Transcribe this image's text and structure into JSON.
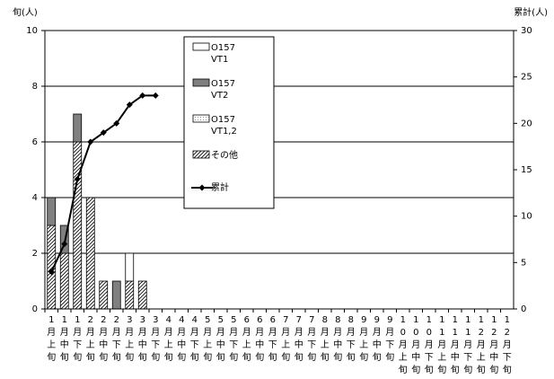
{
  "chart_data": {
    "type": "bar",
    "stacked": true,
    "ylabel": "旬(人)",
    "y2label": "累計(人)",
    "categories": [
      "1月上旬",
      "1月中旬",
      "1月下旬",
      "2月上旬",
      "2月中旬",
      "2月下旬",
      "3月上旬",
      "3月中旬",
      "3月下旬",
      "4月上旬",
      "4月中旬",
      "4月下旬",
      "5月上旬",
      "5月中旬",
      "5月下旬",
      "6月上旬",
      "6月中旬",
      "6月下旬",
      "7月上旬",
      "7月中旬",
      "7月下旬",
      "8月上旬",
      "8月中旬",
      "8月下旬",
      "9月上旬",
      "9月中旬",
      "9月下旬",
      "10月上旬",
      "10月中旬",
      "10月下旬",
      "11月上旬",
      "11月中旬",
      "11月下旬",
      "12月上旬",
      "12月中旬",
      "12月下旬"
    ],
    "ylim": [
      0,
      10
    ],
    "yticks": [
      0,
      2,
      4,
      6,
      8,
      10
    ],
    "y2lim": [
      0,
      30
    ],
    "y2ticks": [
      0,
      5,
      10,
      15,
      20,
      25,
      30
    ],
    "grid": true,
    "legend": "top-center",
    "series": [
      {
        "name": "O157 VT1",
        "color": "#ffffff",
        "pattern": "solid",
        "values": [
          0,
          0,
          0,
          0,
          0,
          0,
          1,
          0,
          0,
          0,
          0,
          0,
          0,
          0,
          0,
          0,
          0,
          0,
          0,
          0,
          0,
          0,
          0,
          0,
          0,
          0,
          0,
          0,
          0,
          0,
          0,
          0,
          0,
          0,
          0,
          0
        ]
      },
      {
        "name": "O157 VT2",
        "color": "#808080",
        "pattern": "solid",
        "values": [
          1,
          1,
          1,
          0,
          0,
          1,
          0,
          0,
          0,
          0,
          0,
          0,
          0,
          0,
          0,
          0,
          0,
          0,
          0,
          0,
          0,
          0,
          0,
          0,
          0,
          0,
          0,
          0,
          0,
          0,
          0,
          0,
          0,
          0,
          0,
          0
        ]
      },
      {
        "name": "O157 VT1,2",
        "color": "#f2f2f2",
        "pattern": "dots",
        "values": [
          0,
          0,
          0,
          0,
          0,
          0,
          0,
          0,
          0,
          0,
          0,
          0,
          0,
          0,
          0,
          0,
          0,
          0,
          0,
          0,
          0,
          0,
          0,
          0,
          0,
          0,
          0,
          0,
          0,
          0,
          0,
          0,
          0,
          0,
          0,
          0
        ]
      },
      {
        "name": "その他",
        "color": "#ffffff",
        "pattern": "hatch",
        "values": [
          3,
          2,
          6,
          4,
          1,
          0,
          1,
          1,
          0,
          0,
          0,
          0,
          0,
          0,
          0,
          0,
          0,
          0,
          0,
          0,
          0,
          0,
          0,
          0,
          0,
          0,
          0,
          0,
          0,
          0,
          0,
          0,
          0,
          0,
          0,
          0
        ]
      },
      {
        "name": "累計",
        "color": "#000000",
        "type": "line",
        "axis": "y2",
        "values": [
          4,
          7,
          14,
          18,
          19,
          20,
          22,
          23,
          23,
          null,
          null,
          null,
          null,
          null,
          null,
          null,
          null,
          null,
          null,
          null,
          null,
          null,
          null,
          null,
          null,
          null,
          null,
          null,
          null,
          null,
          null,
          null,
          null,
          null,
          null,
          null
        ]
      }
    ]
  }
}
